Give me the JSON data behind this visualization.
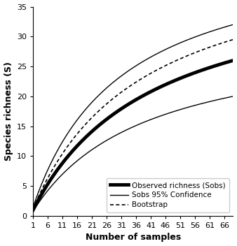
{
  "title": "",
  "xlabel": "Number of samples",
  "ylabel": "Species richness (S)",
  "xlim": [
    1,
    69
  ],
  "ylim": [
    0,
    35
  ],
  "xticks": [
    1,
    6,
    11,
    16,
    21,
    26,
    31,
    36,
    41,
    46,
    51,
    56,
    61,
    66
  ],
  "yticks": [
    0,
    5,
    10,
    15,
    20,
    25,
    30,
    35
  ],
  "curves": {
    "sobs": {
      "a": 31.0,
      "b": 0.038,
      "start": 1.0,
      "end": 26.0
    },
    "upper": {
      "a": 38.0,
      "b": 0.033,
      "start": 1.5,
      "end": 32.0
    },
    "lower": {
      "a": 24.0,
      "b": 0.042,
      "start": 0.8,
      "end": 20.0
    },
    "bootstrap": {
      "a": 35.0,
      "b": 0.035,
      "start": 1.2,
      "end": 29.5
    }
  },
  "sobs_lw": 3.5,
  "ci_lw": 1.0,
  "boot_lw": 1.2,
  "legend_fontsize": 7.5,
  "label_fontsize": 9,
  "tick_fontsize": 8,
  "background_color": "#ffffff",
  "line_color": "#000000",
  "boot_color": "#555555"
}
